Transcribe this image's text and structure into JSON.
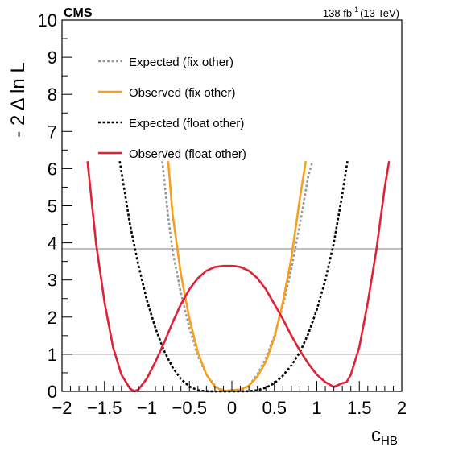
{
  "chart_data": {
    "type": "line",
    "experiment_label": "CMS",
    "lumi_text": "138 fb",
    "lumi_exponent": "-1",
    "energy_text": "(13 TeV)",
    "xlabel": "c",
    "xlabel_sub": "HB",
    "ylabel": "- 2 Δ ln L",
    "xlim": [
      -2,
      2
    ],
    "ylim": [
      0,
      10
    ],
    "xticks": [
      -2,
      -1.5,
      -1,
      -0.5,
      0,
      0.5,
      1,
      1.5,
      2
    ],
    "xtick_labels": [
      "−2",
      "−1.5",
      "−1",
      "−0.5",
      "0",
      "0.5",
      "1",
      "1.5",
      "2"
    ],
    "yticks": [
      0,
      1,
      2,
      3,
      4,
      5,
      6,
      7,
      8,
      9,
      10
    ],
    "ytick_labels": [
      "0",
      "1",
      "2",
      "3",
      "4",
      "5",
      "6",
      "7",
      "8",
      "9",
      "10"
    ],
    "reference_lines": [
      1.0,
      3.84
    ],
    "legend_position": "top-left",
    "series": [
      {
        "name": "Expected (fix other)",
        "color": "#999999",
        "dash": "dotted",
        "x": [
          -0.82,
          -0.75,
          -0.7,
          -0.6,
          -0.5,
          -0.4,
          -0.3,
          -0.2,
          -0.1,
          0,
          0.1,
          0.2,
          0.3,
          0.4,
          0.5,
          0.6,
          0.7,
          0.8,
          0.9,
          0.95
        ],
        "y": [
          6.2,
          4.7,
          3.8,
          2.65,
          1.7,
          0.95,
          0.45,
          0.15,
          0.02,
          0,
          0.02,
          0.15,
          0.45,
          0.9,
          1.5,
          2.3,
          3.3,
          4.5,
          5.8,
          6.2
        ]
      },
      {
        "name": "Observed (fix other)",
        "color": "#f5a01e",
        "dash": "solid",
        "x": [
          -0.75,
          -0.7,
          -0.6,
          -0.5,
          -0.4,
          -0.3,
          -0.2,
          -0.1,
          0,
          0.1,
          0.2,
          0.3,
          0.4,
          0.5,
          0.6,
          0.7,
          0.8,
          0.87
        ],
        "y": [
          6.2,
          4.8,
          3.15,
          1.95,
          1.05,
          0.45,
          0.12,
          0.01,
          0.03,
          0.05,
          0.15,
          0.4,
          0.8,
          1.45,
          2.4,
          3.6,
          5.2,
          6.2
        ]
      },
      {
        "name": "Expected (float other)",
        "color": "#000000",
        "dash": "dotted",
        "x": [
          -1.32,
          -1.2,
          -1.1,
          -1.0,
          -0.9,
          -0.8,
          -0.7,
          -0.6,
          -0.5,
          -0.4,
          -0.3,
          -0.2,
          -0.1,
          0,
          0.1,
          0.2,
          0.3,
          0.4,
          0.5,
          0.6,
          0.7,
          0.8,
          0.9,
          1.0,
          1.1,
          1.2,
          1.3,
          1.36
        ],
        "y": [
          6.2,
          4.5,
          3.4,
          2.45,
          1.7,
          1.1,
          0.65,
          0.33,
          0.13,
          0.03,
          0.005,
          0,
          0,
          0,
          0,
          0.005,
          0.03,
          0.1,
          0.22,
          0.42,
          0.7,
          1.05,
          1.55,
          2.2,
          3.0,
          4.0,
          5.3,
          6.2
        ]
      },
      {
        "name": "Observed (float other)",
        "color": "#e02236",
        "dash": "solid",
        "x": [
          -1.7,
          -1.6,
          -1.5,
          -1.4,
          -1.3,
          -1.2,
          -1.15,
          -1.1,
          -1.0,
          -0.9,
          -0.8,
          -0.7,
          -0.6,
          -0.5,
          -0.4,
          -0.3,
          -0.2,
          -0.1,
          0,
          0.05,
          0.1,
          0.2,
          0.3,
          0.4,
          0.5,
          0.6,
          0.7,
          0.8,
          0.9,
          1.0,
          1.1,
          1.2,
          1.3,
          1.35,
          1.4,
          1.5,
          1.6,
          1.7,
          1.8,
          1.85
        ],
        "y": [
          6.2,
          4.0,
          2.4,
          1.2,
          0.45,
          0.08,
          0,
          0.05,
          0.35,
          0.8,
          1.3,
          1.85,
          2.35,
          2.75,
          3.05,
          3.25,
          3.35,
          3.38,
          3.38,
          3.37,
          3.35,
          3.25,
          3.05,
          2.75,
          2.35,
          1.95,
          1.5,
          1.1,
          0.75,
          0.45,
          0.25,
          0.12,
          0.22,
          0.25,
          0.45,
          1.2,
          2.4,
          3.8,
          5.5,
          6.2
        ]
      }
    ]
  }
}
